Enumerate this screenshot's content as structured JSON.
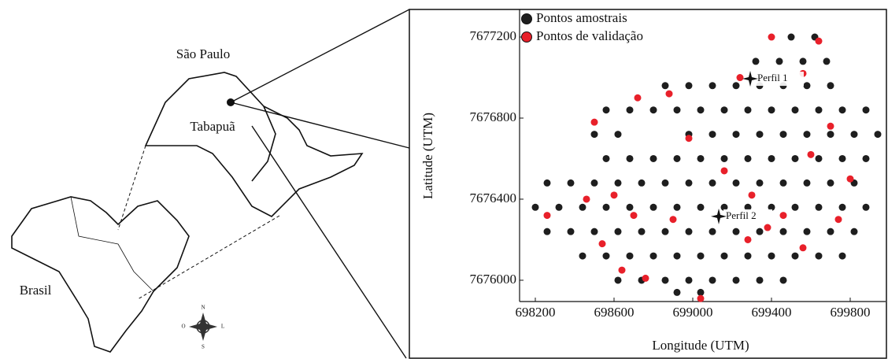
{
  "map": {
    "labels": [
      "São Paulo",
      "Tabapuã",
      "Brasil"
    ],
    "compass": [
      "N",
      "L",
      "S",
      "O"
    ]
  },
  "chart_data": {
    "type": "scatter",
    "xlabel": "Longitude (UTM)",
    "ylabel": "Latitude (UTM)",
    "xlim": [
      698120,
      699980
    ],
    "ylim": [
      7675895,
      7677336
    ],
    "xticks": [
      698200,
      698600,
      699000,
      699400,
      699800
    ],
    "yticks": [
      7676000,
      7676400,
      7676800,
      7677200
    ],
    "legend": "upper left",
    "series": [
      {
        "name": "Pontos amostrais",
        "color": "#1e1e1e",
        "x": [
          699500,
          699620,
          699320,
          699440,
          699560,
          699680,
          698860,
          698980,
          699100,
          699220,
          699340,
          699460,
          699580,
          699700,
          698560,
          698680,
          698800,
          698920,
          699040,
          699160,
          699280,
          699400,
          699520,
          699640,
          699760,
          699880,
          698500,
          698620,
          698980,
          699100,
          699220,
          699340,
          699460,
          699580,
          699700,
          699820,
          699940,
          698560,
          698680,
          698800,
          698920,
          699040,
          699160,
          699280,
          699400,
          699520,
          699640,
          699760,
          699880,
          698260,
          698380,
          698500,
          698620,
          698740,
          698860,
          698980,
          699100,
          699220,
          699340,
          699460,
          699580,
          699700,
          699820,
          698200,
          698320,
          698440,
          698560,
          698680,
          698800,
          698920,
          699040,
          699160,
          699280,
          699400,
          699520,
          699640,
          699760,
          699880,
          698260,
          698380,
          698500,
          698620,
          698740,
          698860,
          698980,
          699100,
          699220,
          699340,
          699460,
          699580,
          699700,
          699820,
          698440,
          698560,
          698680,
          698800,
          698920,
          699040,
          699160,
          699280,
          699400,
          699520,
          699640,
          699760,
          698620,
          698740,
          698860,
          698980,
          699100,
          699220,
          699340,
          699460,
          698920,
          699040
        ],
        "y": [
          7677200,
          7677200,
          7677080,
          7677080,
          7677080,
          7677080,
          7676960,
          7676960,
          7676960,
          7676960,
          7676960,
          7676960,
          7676960,
          7676960,
          7676840,
          7676840,
          7676840,
          7676840,
          7676840,
          7676840,
          7676840,
          7676840,
          7676840,
          7676840,
          7676840,
          7676840,
          7676720,
          7676720,
          7676720,
          7676720,
          7676720,
          7676720,
          7676720,
          7676720,
          7676720,
          7676720,
          7676720,
          7676600,
          7676600,
          7676600,
          7676600,
          7676600,
          7676600,
          7676600,
          7676600,
          7676600,
          7676600,
          7676600,
          7676600,
          7676480,
          7676480,
          7676480,
          7676480,
          7676480,
          7676480,
          7676480,
          7676480,
          7676480,
          7676480,
          7676480,
          7676480,
          7676480,
          7676480,
          7676360,
          7676360,
          7676360,
          7676360,
          7676360,
          7676360,
          7676360,
          7676360,
          7676360,
          7676360,
          7676360,
          7676360,
          7676360,
          7676360,
          7676360,
          7676240,
          7676240,
          7676240,
          7676240,
          7676240,
          7676240,
          7676240,
          7676240,
          7676240,
          7676240,
          7676240,
          7676240,
          7676240,
          7676240,
          7676120,
          7676120,
          7676120,
          7676120,
          7676120,
          7676120,
          7676120,
          7676120,
          7676120,
          7676120,
          7676120,
          7676120,
          7676000,
          7676000,
          7676000,
          7676000,
          7676000,
          7676000,
          7676000,
          7676000,
          7675940,
          7675940
        ]
      },
      {
        "name": "Pontos de validação",
        "color": "#e8202a",
        "x": [
          698500,
          698720,
          699400,
          699640,
          699560,
          699240,
          698880,
          699700,
          699160,
          699600,
          698980,
          698260,
          698460,
          698600,
          698700,
          698540,
          698640,
          698760,
          699040,
          699280,
          699380,
          699560,
          699740,
          699800,
          698900,
          699300,
          699460
        ],
        "y": [
          7676780,
          7676900,
          7677200,
          7677180,
          7677020,
          7677000,
          7676920,
          7676760,
          7676540,
          7676620,
          7676700,
          7676320,
          7676400,
          7676420,
          7676320,
          7676180,
          7676050,
          7676010,
          7675910,
          7676200,
          7676260,
          7676160,
          7676300,
          7676500,
          7676300,
          7676420,
          7676320
        ]
      }
    ],
    "annotations": [
      {
        "text": "Perfil 1",
        "x": 699292,
        "y": 7676994
      },
      {
        "text": "Perfil 2",
        "x": 699132,
        "y": 7676315
      }
    ]
  }
}
